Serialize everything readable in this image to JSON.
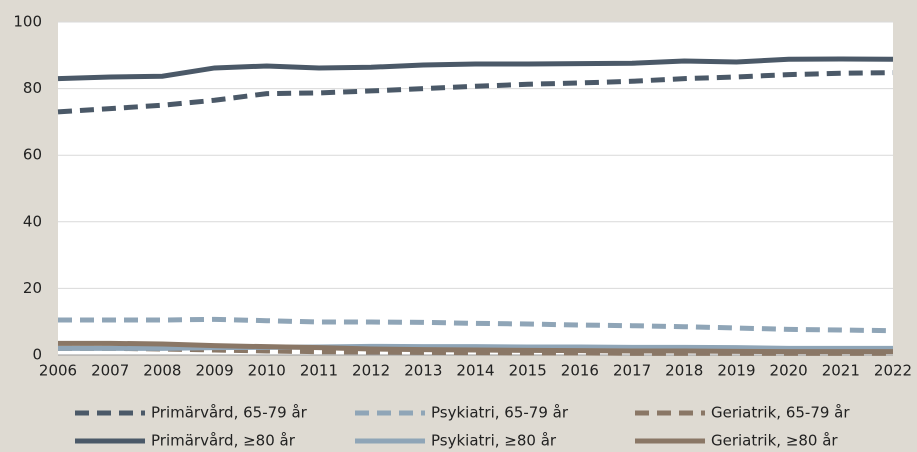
{
  "chart_data": {
    "type": "line",
    "categories": [
      "2006",
      "2007",
      "2008",
      "2009",
      "2010",
      "2011",
      "2012",
      "2013",
      "2014",
      "2015",
      "2016",
      "2017",
      "2018",
      "2019",
      "2020",
      "2021",
      "2022"
    ],
    "series": [
      {
        "name": "Primärvård, 65-79 år",
        "color": "#4b5968",
        "dash": true,
        "values": [
          73,
          74,
          75,
          76.5,
          78.5,
          78.7,
          79.3,
          80,
          80.7,
          81.3,
          81.7,
          82.2,
          83,
          83.5,
          84.2,
          84.6,
          84.8
        ]
      },
      {
        "name": "Psykiatri, 65-79 år",
        "color": "#8fa5b7",
        "dash": true,
        "values": [
          10.5,
          10.5,
          10.5,
          10.7,
          10.3,
          9.9,
          9.9,
          9.8,
          9.5,
          9.3,
          9.0,
          8.8,
          8.5,
          8.1,
          7.7,
          7.5,
          7.3
        ]
      },
      {
        "name": "Geriatrik, 65-79 år",
        "color": "#8a7766",
        "dash": true,
        "values": [
          2,
          2,
          1.8,
          1.5,
          1.2,
          1.0,
          0.9,
          0.8,
          0.7,
          0.6,
          0.6,
          0.5,
          0.5,
          0.5,
          0.5,
          0.5,
          0.5
        ]
      },
      {
        "name": "Primärvård, ≥80 år",
        "color": "#4b5968",
        "dash": false,
        "values": [
          83,
          83.5,
          83.7,
          86.2,
          86.8,
          86.2,
          86.4,
          87.1,
          87.4,
          87.4,
          87.5,
          87.6,
          88.3,
          88,
          88.8,
          88.9,
          88.8
        ]
      },
      {
        "name": "Psykiatri, ≥80 år",
        "color": "#8fa5b7",
        "dash": false,
        "values": [
          2,
          2,
          2,
          2.2,
          2.3,
          2.4,
          2.6,
          2.5,
          2.5,
          2.4,
          2.4,
          2.3,
          2.3,
          2.2,
          2.0,
          2.0,
          2.0
        ]
      },
      {
        "name": "Geriatrik, ≥80 år",
        "color": "#8a7766",
        "dash": false,
        "values": [
          3.5,
          3.5,
          3.3,
          2.8,
          2.5,
          2.2,
          1.8,
          1.6,
          1.5,
          1.4,
          1.3,
          1.2,
          1.2,
          1.1,
          1.0,
          1.0,
          1.0
        ]
      }
    ],
    "ylim": [
      0,
      100
    ],
    "yticks": [
      0,
      20,
      40,
      60,
      80,
      100
    ],
    "grid": true
  }
}
